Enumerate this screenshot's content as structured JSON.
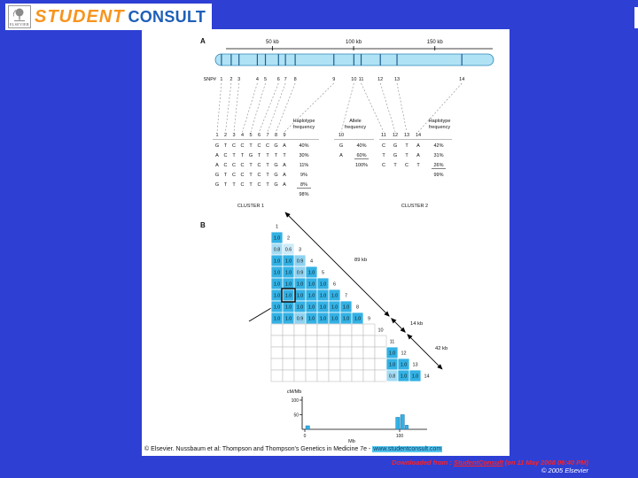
{
  "window": {
    "bg_color": "#2e3fd4"
  },
  "logo": {
    "student": "STUDENT",
    "consult": "CONSULT",
    "elsevier": "ELSEVIER",
    "student_color": "#F7941E",
    "consult_color": "#1E5FB8"
  },
  "footer": {
    "downloaded_prefix": "Downloaded from : ",
    "downloaded_link": "StudentConsult",
    "downloaded_suffix": " (on 11 May 2008 06:40 PM)",
    "copyright": "© 2005 Elsevier"
  },
  "figure": {
    "caption_prefix": "© Elsevier. Nussbaum et al: Thompson and Thompson's Genetics in Medicine 7e - ",
    "caption_url": "www.studentconsult.com",
    "panelA": {
      "label": "A",
      "scale_ticks": [
        {
          "label": "50 kb",
          "f": 0.205
        },
        {
          "label": "100 kb",
          "f": 0.497
        },
        {
          "label": "150 kb",
          "f": 0.789
        }
      ],
      "snp_axis_label": "SNP#",
      "snps": [
        {
          "label": "1",
          "f": 0.022
        },
        {
          "label": "2",
          "f": 0.057
        },
        {
          "label": "3",
          "f": 0.085
        },
        {
          "label": "4",
          "f": 0.151
        },
        {
          "label": "5",
          "f": 0.18
        },
        {
          "label": "6",
          "f": 0.227
        },
        {
          "label": "7",
          "f": 0.252
        },
        {
          "label": "8",
          "f": 0.287
        },
        {
          "label": "9",
          "f": 0.426
        },
        {
          "label": "10",
          "f": 0.498
        },
        {
          "label": "11",
          "f": 0.524
        },
        {
          "label": "12",
          "f": 0.593
        },
        {
          "label": "13",
          "f": 0.653
        },
        {
          "label": "14",
          "f": 0.886
        }
      ],
      "cluster1": {
        "header_line1": "Haplotype",
        "header_line2": "frequency",
        "col_labels": [
          "1",
          "2",
          "3",
          "4",
          "5",
          "6",
          "7",
          "8",
          "9"
        ],
        "rows": [
          {
            "alleles": [
              "G",
              "T",
              "C",
              "C",
              "T",
              "C",
              "C",
              "G",
              "A"
            ],
            "freq": "40%"
          },
          {
            "alleles": [
              "A",
              "C",
              "T",
              "T",
              "G",
              "T",
              "T",
              "T",
              "T"
            ],
            "freq": "30%"
          },
          {
            "alleles": [
              "A",
              "C",
              "C",
              "C",
              "T",
              "C",
              "T",
              "G",
              "A"
            ],
            "freq": "11%"
          },
          {
            "alleles": [
              "G",
              "T",
              "C",
              "C",
              "T",
              "C",
              "T",
              "G",
              "A"
            ],
            "freq": "9%"
          },
          {
            "alleles": [
              "G",
              "T",
              "T",
              "C",
              "T",
              "C",
              "T",
              "G",
              "A"
            ],
            "freq": "8%",
            "underline": true
          }
        ],
        "total": "98%",
        "cluster_label": "CLUSTER 1"
      },
      "allele10": {
        "header_line1": "Allele",
        "header_line2": "frequency",
        "col_labels": [
          "10"
        ],
        "rows": [
          {
            "alleles": [
              "G"
            ],
            "freq": "40%"
          },
          {
            "alleles": [
              "A"
            ],
            "freq": "60%",
            "underline": true
          }
        ],
        "total": "100%"
      },
      "cluster2": {
        "header_line1": "Haplotype",
        "header_line2": "frequency",
        "col_labels": [
          "11",
          "12",
          "13",
          "14"
        ],
        "rows": [
          {
            "alleles": [
              "C",
              "G",
              "T",
              "A"
            ],
            "freq": "42%"
          },
          {
            "alleles": [
              "T",
              "G",
              "T",
              "A"
            ],
            "freq": "31%"
          },
          {
            "alleles": [
              "C",
              "T",
              "C",
              "T"
            ],
            "freq": "26%",
            "underline": true
          }
        ],
        "total": "99%",
        "cluster_label": "CLUSTER 2"
      }
    },
    "panelB": {
      "label": "B",
      "value_colors": {
        "1.0": "#33b1e4",
        "0.9": "#8fd2f0",
        "0.8": "#a5dbf3",
        "0.6": "#cdeaf8"
      },
      "matrix": [
        {
          "snp": "1",
          "cells": []
        },
        {
          "snp": "2",
          "cells": [
            "1.0"
          ]
        },
        {
          "snp": "3",
          "cells": [
            "0.8",
            "0.6"
          ]
        },
        {
          "snp": "4",
          "cells": [
            "1.0",
            "1.0",
            "0.9"
          ]
        },
        {
          "snp": "5",
          "cells": [
            "1.0",
            "1.0",
            "0.9",
            "1.0"
          ]
        },
        {
          "snp": "6",
          "cells": [
            "1.0",
            "1.0",
            "1.0",
            "1.0",
            "1.0"
          ]
        },
        {
          "snp": "7",
          "cells": [
            "1.0",
            "1.0",
            "1.0",
            "1.0",
            "1.0",
            "1.0"
          ]
        },
        {
          "snp": "8",
          "cells": [
            "1.0",
            "1.0",
            "1.0",
            "1.0",
            "1.0",
            "1.0",
            "1.0"
          ]
        },
        {
          "snp": "9",
          "cells": [
            "1.0",
            "1.0",
            "0.9",
            "1.0",
            "1.0",
            "1.0",
            "1.0",
            "1.0"
          ]
        },
        {
          "snp": "10",
          "cells": [
            "",
            "",
            "",
            "",
            "",
            "",
            "",
            "",
            ""
          ]
        },
        {
          "snp": "11",
          "cells": [
            "",
            "",
            "",
            "",
            "",
            "",
            "",
            "",
            "",
            ""
          ]
        },
        {
          "snp": "12",
          "cells": [
            "",
            "",
            "",
            "",
            "",
            "",
            "",
            "",
            "",
            "",
            "1.0"
          ]
        },
        {
          "snp": "13",
          "cells": [
            "",
            "",
            "",
            "",
            "",
            "",
            "",
            "",
            "",
            "",
            "1.0",
            "1.0"
          ]
        },
        {
          "snp": "14",
          "cells": [
            "",
            "",
            "",
            "",
            "",
            "",
            "",
            "",
            "",
            "",
            "0.8",
            "1.0",
            "1.0"
          ]
        }
      ],
      "highlight_cell": {
        "row": 7,
        "col": 2
      },
      "span_labels": [
        "89 kb",
        "14 kb",
        "42 kb"
      ]
    },
    "chart_data": {
      "type": "bar",
      "ylabel": "cM/Mb",
      "xlabel": "Mb",
      "ylim": [
        0,
        100
      ],
      "yticks": [
        100,
        50
      ],
      "xticks": [
        0,
        100
      ],
      "bars": [
        {
          "x": 1,
          "w": 4,
          "h": 12
        },
        {
          "x": 96,
          "w": 4,
          "h": 41
        },
        {
          "x": 101,
          "w": 4,
          "h": 50
        },
        {
          "x": 106,
          "w": 3,
          "h": 14
        }
      ],
      "bar_color": "#33b1e4"
    }
  }
}
